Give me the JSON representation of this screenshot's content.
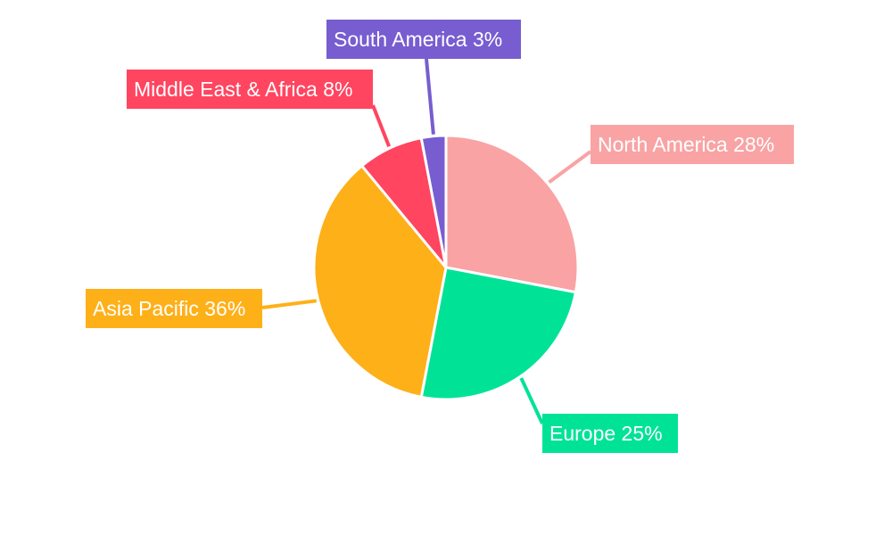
{
  "chart_data": {
    "type": "pie",
    "start_angle": "12 o'clock, clockwise",
    "legend": "none",
    "slices": [
      {
        "label": "North America",
        "value": 28,
        "display": "North America 28%",
        "color": "#f9a3a4"
      },
      {
        "label": "Europe",
        "value": 25,
        "display": "Europe 25%",
        "color": "#00e396"
      },
      {
        "label": "Asia Pacific",
        "value": 36,
        "display": "Asia Pacific 36%",
        "color": "#feb019"
      },
      {
        "label": "Middle East & Africa",
        "value": 8,
        "display": "Middle East & Africa 8%",
        "color": "#ff4560"
      },
      {
        "label": "South America",
        "value": 3,
        "display": "South America 3%",
        "color": "#775dd0"
      }
    ]
  }
}
